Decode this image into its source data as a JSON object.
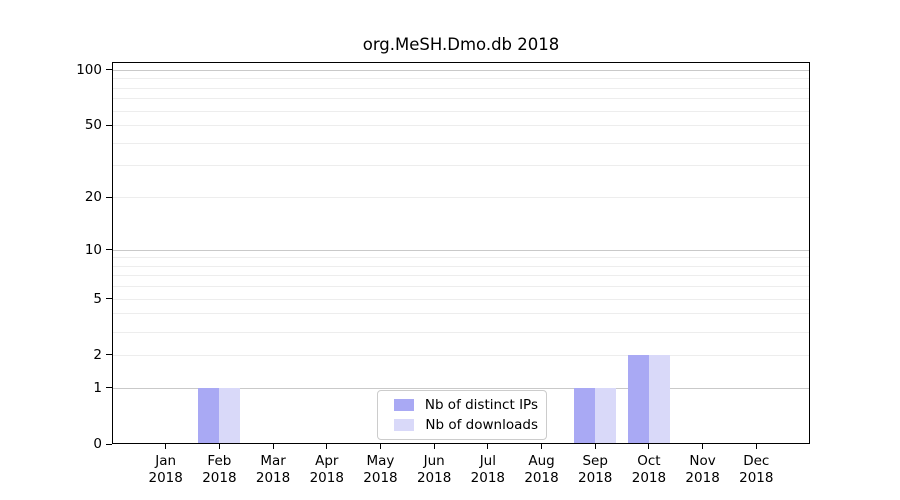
{
  "chart_data": {
    "type": "bar",
    "title": "org.MeSH.Dmo.db 2018",
    "year_label": "2018",
    "categories": [
      "Jan",
      "Feb",
      "Mar",
      "Apr",
      "May",
      "Jun",
      "Jul",
      "Aug",
      "Sep",
      "Oct",
      "Nov",
      "Dec"
    ],
    "series": [
      {
        "name": "Nb of distinct IPs",
        "color": "#a9a9f4",
        "values": [
          0,
          1,
          0,
          0,
          0,
          0,
          0,
          0,
          1,
          2,
          0,
          0
        ]
      },
      {
        "name": "Nb of downloads",
        "color": "#d9d9f9",
        "values": [
          0,
          1,
          0,
          0,
          0,
          0,
          0,
          0,
          1,
          2,
          0,
          0
        ]
      }
    ],
    "yticks": [
      0,
      1,
      2,
      5,
      10,
      20,
      50,
      100
    ],
    "yscale": "log10(1+x)",
    "ylim": [
      0,
      110
    ],
    "grid": "horizontal",
    "legend_position": "lower center",
    "colors": {
      "major_grid": "#c9c9c9",
      "minor_grid": "#ededed",
      "axis": "#000000",
      "legend_border": "#cccccc",
      "background": "#ffffff"
    }
  }
}
